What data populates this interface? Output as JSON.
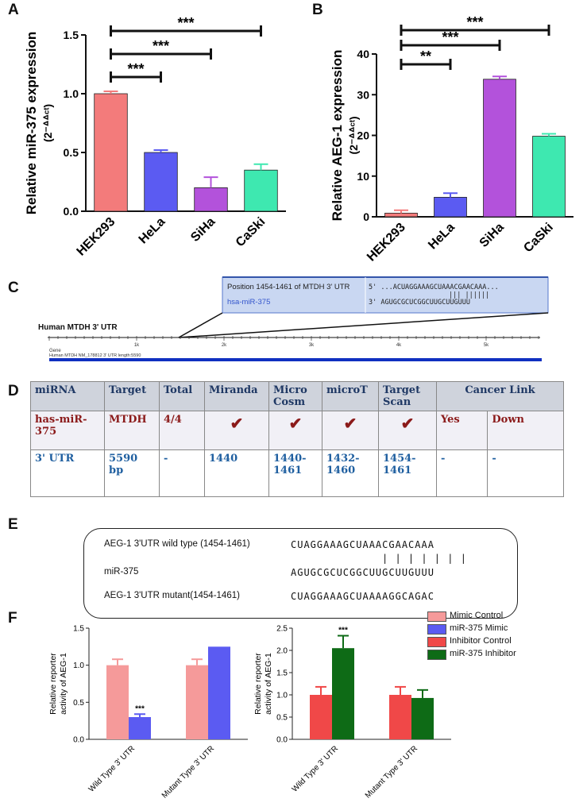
{
  "panels": {
    "a": "A",
    "b": "B",
    "c": "C",
    "d": "D",
    "e": "E",
    "f": "F"
  },
  "chart_data": [
    {
      "type": "bar",
      "id": "A",
      "categories": [
        "HEK293",
        "HeLa",
        "SiHa",
        "CaSki"
      ],
      "values": [
        1.0,
        0.5,
        0.2,
        0.35
      ],
      "errors": [
        0.02,
        0.02,
        0.09,
        0.05
      ],
      "colors": [
        "#f37b7b",
        "#5b5bf2",
        "#b352db",
        "#3ee8b0"
      ],
      "ylabel": "Relative miR-375 expression",
      "ylabel2": "(2⁻ᐞᐞᶜᵗ)",
      "ylim": [
        0,
        1.5
      ],
      "yticks": [
        "0.0",
        "0.5",
        "1.0",
        "1.5"
      ],
      "significance": [
        {
          "from": 0,
          "to": 1,
          "label": "***"
        },
        {
          "from": 0,
          "to": 2,
          "label": "***"
        },
        {
          "from": 0,
          "to": 3,
          "label": "***"
        }
      ]
    },
    {
      "type": "bar",
      "id": "B",
      "categories": [
        "HEK293",
        "HeLa",
        "SiHa",
        "CaSki"
      ],
      "values": [
        0.9,
        4.8,
        33.8,
        19.8
      ],
      "errors": [
        0.7,
        1.0,
        0.7,
        0.6
      ],
      "colors": [
        "#f37b7b",
        "#5b5bf2",
        "#b352db",
        "#3ee8b0"
      ],
      "ylabel": "Relative AEG-1 expression",
      "ylabel2": "(2⁻ᐞᐞᶜᵗ)",
      "ylim": [
        0,
        40
      ],
      "yticks": [
        "0",
        "10",
        "20",
        "30",
        "40"
      ],
      "significance": [
        {
          "from": 0,
          "to": 1,
          "label": "**"
        },
        {
          "from": 0,
          "to": 2,
          "label": "***"
        },
        {
          "from": 0,
          "to": 3,
          "label": "***"
        }
      ]
    },
    {
      "type": "bar",
      "id": "F1",
      "categories": [
        "Wild Type 3' UTR",
        "Mutant Type 3' UTR"
      ],
      "series": [
        {
          "name": "Mimic Control",
          "color": "#f59a9a",
          "values": [
            1.0,
            1.0
          ],
          "errors": [
            0.08,
            0.08
          ]
        },
        {
          "name": "miR-375 Mimic",
          "color": "#5b5bf2",
          "values": [
            0.3,
            1.25
          ],
          "errors": [
            0.04,
            0.0
          ]
        }
      ],
      "significance": [
        {
          "series": 1,
          "category": 0,
          "label": "***"
        }
      ],
      "ylabel": "Relative reporter activity of AEG-1",
      "ylim": [
        0,
        1.5
      ],
      "yticks": [
        "0.0",
        "0.5",
        "1.0",
        "1.5"
      ]
    },
    {
      "type": "bar",
      "id": "F2",
      "categories": [
        "Wild Type 3' UTR",
        "Mutant Type 3' UTR"
      ],
      "series": [
        {
          "name": "Inhibitor Control",
          "color": "#f04848",
          "values": [
            1.0,
            1.0
          ],
          "errors": [
            0.18,
            0.18
          ]
        },
        {
          "name": "miR-375 Inhibitor",
          "color": "#0e6b16",
          "values": [
            2.05,
            0.93
          ],
          "errors": [
            0.28,
            0.18
          ]
        }
      ],
      "significance": [
        {
          "series": 1,
          "category": 0,
          "label": "***"
        }
      ],
      "ylabel": "Relative reporter activity of AEG-1",
      "ylim": [
        0,
        2.5
      ],
      "yticks": [
        "0.0",
        "0.5",
        "1.0",
        "1.5",
        "2.0",
        "2.5"
      ]
    }
  ],
  "legendF": [
    {
      "label": "Mimic Control",
      "color": "#f59a9a"
    },
    {
      "label": "miR-375 Mimic",
      "color": "#5b5bf2"
    },
    {
      "label": "Inhibitor Control",
      "color": "#f04848"
    },
    {
      "label": "miR-375 Inhibitor",
      "color": "#0e6b16"
    }
  ],
  "panelC": {
    "title": "Human MTDH  3' UTR",
    "position_label": "Position 1454-1461 of MTDH 3' UTR",
    "mirna_label": "hsa-miR-375",
    "seq_top": "5'   ...ACUAGGAAAGCUAAACGAACAAA...",
    "pairs": "|||  ||||||",
    "seq_bottom": "3'       AGUGCGCUCGGCUUGCUUGUUU",
    "ticks": [
      "1k",
      "2k",
      "3k",
      "4k",
      "5k"
    ],
    "gene_label": "Gene",
    "gene_desc": "Human MTDH NM_178812 3' UTR length:5590"
  },
  "tableD": {
    "headers": [
      "miRNA",
      "Target",
      "Total",
      "Miranda",
      "Micro Cosm",
      "microT",
      "Target Scan",
      "Cancer Link"
    ],
    "row1": [
      "has-miR-375",
      "MTDH",
      "4/4",
      "✔",
      "✔",
      "✔",
      "✔",
      "Yes",
      "Down"
    ],
    "row2": [
      "3'  UTR",
      "5590 bp",
      "-",
      "1440",
      "1440-1461",
      "1432-1460",
      "1454-1461",
      "-",
      "-"
    ]
  },
  "panelE": {
    "wt_label": "AEG-1  3'UTR wild type (1454-1461)",
    "wt_seq": "CUAGGAAAGCUAAACGAACAAA",
    "pairs": "| | | | | | |",
    "mir_label": "miR-375",
    "mir_seq": "AGUGCGCUCGGCUUGCUUGUUU",
    "mut_label": "AEG-1  3'UTR mutant(1454-1461)",
    "mut_seq": "CUAGGAAAGCUAAAAGGCAGAC"
  }
}
